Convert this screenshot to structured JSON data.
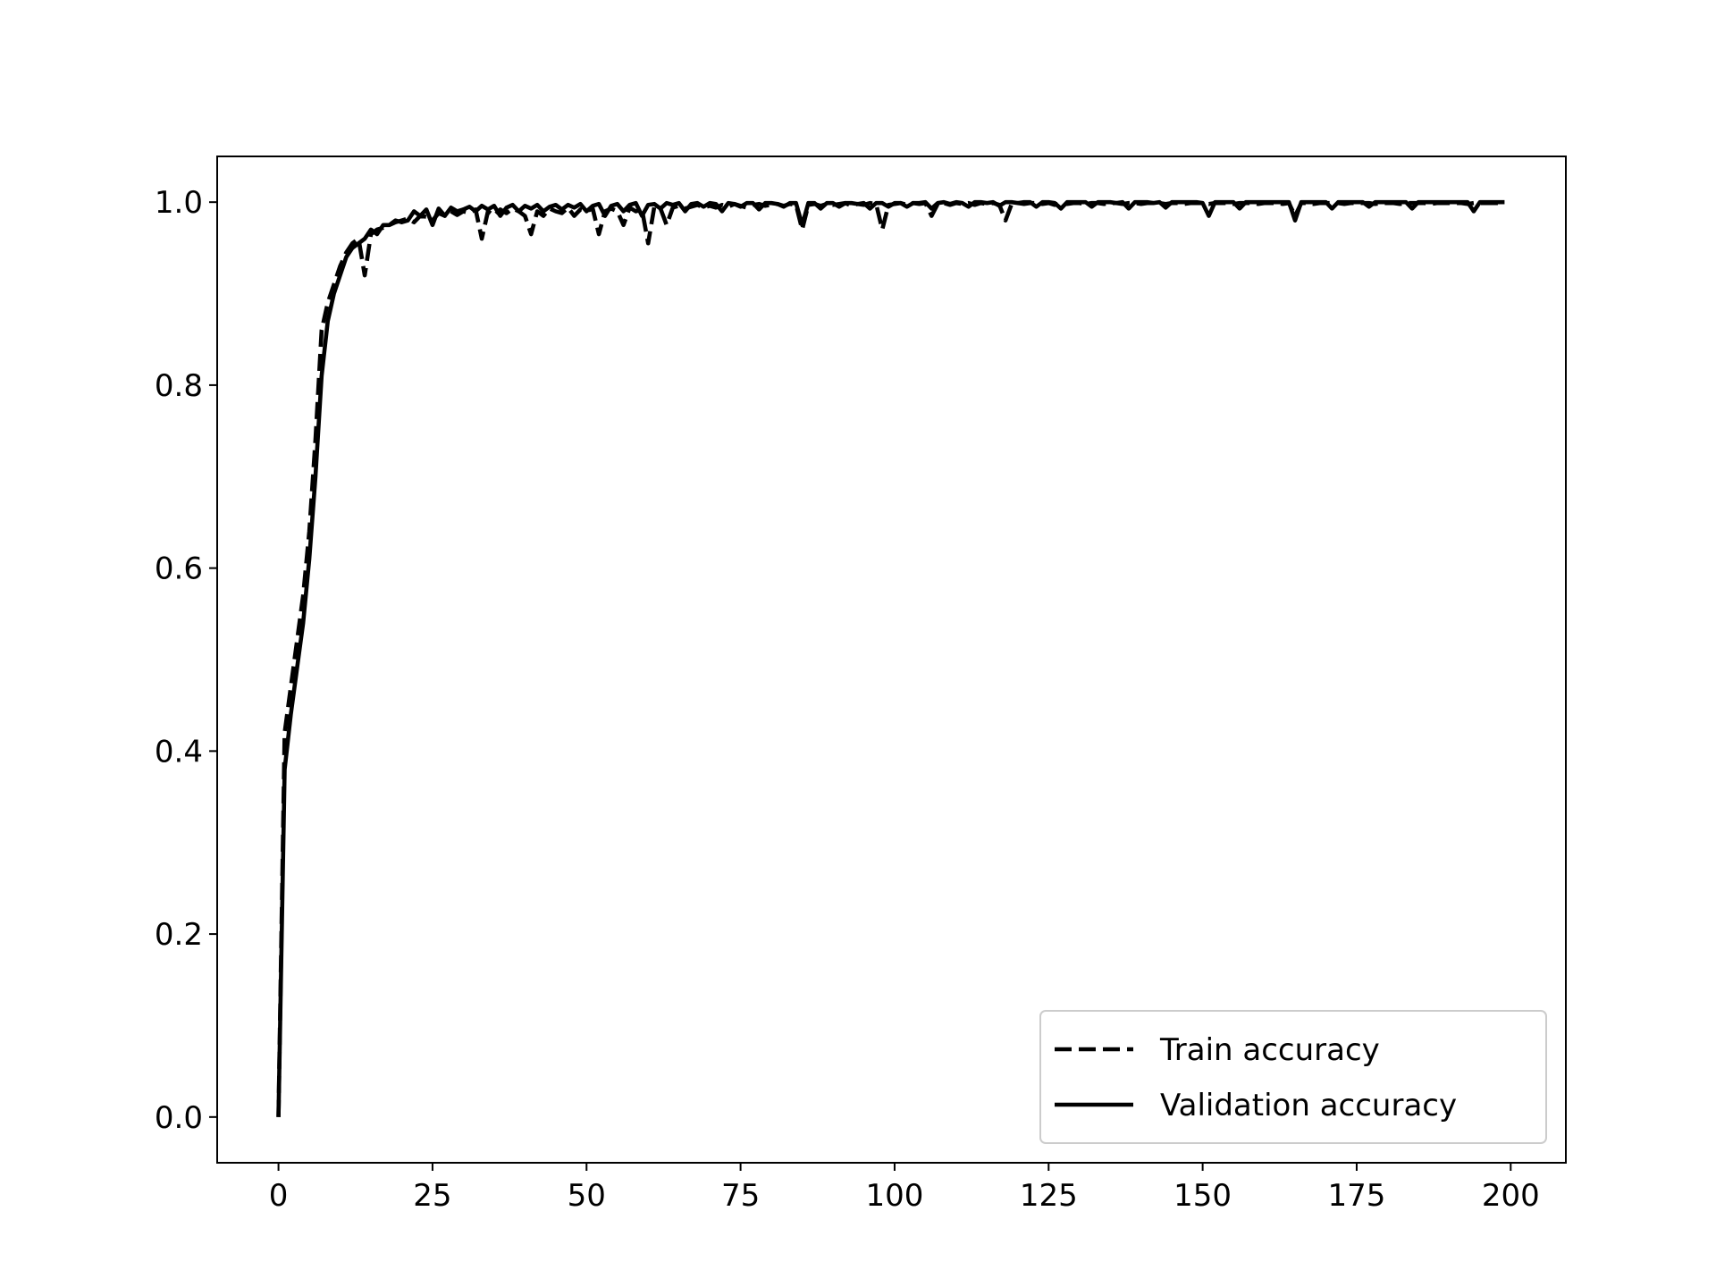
{
  "chart_data": {
    "type": "line",
    "x": [
      0,
      1,
      2,
      3,
      4,
      5,
      6,
      7,
      8,
      9,
      10,
      11,
      12,
      13,
      14,
      15,
      16,
      17,
      18,
      19,
      20,
      21,
      22,
      23,
      24,
      25,
      26,
      27,
      28,
      29,
      30,
      31,
      32,
      33,
      34,
      35,
      36,
      37,
      38,
      39,
      40,
      41,
      42,
      43,
      44,
      45,
      46,
      47,
      48,
      49,
      50,
      51,
      52,
      53,
      54,
      55,
      56,
      57,
      58,
      59,
      60,
      61,
      62,
      63,
      64,
      65,
      66,
      67,
      68,
      69,
      70,
      71,
      72,
      73,
      74,
      75,
      76,
      77,
      78,
      79,
      80,
      81,
      82,
      83,
      84,
      85,
      86,
      87,
      88,
      89,
      90,
      91,
      92,
      93,
      94,
      95,
      96,
      97,
      98,
      99,
      100,
      101,
      102,
      103,
      104,
      105,
      106,
      107,
      108,
      109,
      110,
      111,
      112,
      113,
      114,
      115,
      116,
      117,
      118,
      119,
      120,
      121,
      122,
      123,
      124,
      125,
      126,
      127,
      128,
      129,
      130,
      131,
      132,
      133,
      134,
      135,
      136,
      137,
      138,
      139,
      140,
      141,
      142,
      143,
      144,
      145,
      146,
      147,
      148,
      149,
      150,
      151,
      152,
      153,
      154,
      155,
      156,
      157,
      158,
      159,
      160,
      161,
      162,
      163,
      164,
      165,
      166,
      167,
      168,
      169,
      170,
      171,
      172,
      173,
      174,
      175,
      176,
      177,
      178,
      179,
      180,
      181,
      182,
      183,
      184,
      185,
      186,
      187,
      188,
      189,
      190,
      191,
      192,
      193,
      194,
      195,
      196,
      197,
      198,
      199
    ],
    "series": [
      {
        "name": "Train accuracy",
        "color": "#000000",
        "linestyle": "dashed",
        "values": [
          0,
          0.42,
          0.47,
          0.52,
          0.57,
          0.64,
          0.74,
          0.86,
          0.89,
          0.91,
          0.93,
          0.945,
          0.955,
          0.96,
          0.92,
          0.965,
          0.97,
          0.972,
          0.975,
          0.978,
          0.98,
          0.982,
          0.978,
          0.985,
          0.984,
          0.98,
          0.988,
          0.985,
          0.99,
          0.986,
          0.99,
          0.988,
          0.992,
          0.96,
          0.99,
          0.985,
          0.992,
          0.988,
          0.993,
          0.99,
          0.985,
          0.965,
          0.99,
          0.985,
          0.993,
          0.99,
          0.988,
          0.994,
          0.985,
          0.992,
          0.99,
          0.993,
          0.965,
          0.99,
          0.993,
          0.99,
          0.975,
          0.994,
          0.99,
          0.992,
          0.955,
          0.995,
          0.993,
          0.975,
          0.994,
          0.996,
          0.993,
          0.995,
          0.997,
          0.994,
          0.996,
          0.994,
          0.997,
          0.995,
          0.998,
          0.996,
          0.994,
          0.997,
          0.998,
          0.996,
          0.997,
          0.998,
          0.996,
          0.998,
          0.997,
          0.97,
          0.997,
          0.998,
          0.996,
          0.998,
          0.997,
          0.998,
          0.999,
          0.996,
          0.998,
          0.997,
          0.999,
          0.998,
          0.97,
          0.997,
          0.998,
          0.999,
          0.997,
          0.999,
          0.998,
          0.999,
          0.985,
          0.998,
          0.999,
          0.997,
          0.999,
          0.998,
          0.999,
          0.997,
          0.999,
          0.998,
          0.999,
          0.997,
          0.98,
          0.998,
          0.999,
          0.998,
          0.999,
          0.999,
          0.998,
          0.999,
          0.997,
          0.999,
          0.998,
          0.999,
          0.999,
          0.998,
          0.999,
          0.999,
          0.998,
          0.999,
          0.999,
          0.998,
          0.999,
          0.999,
          0.998,
          0.999,
          0.999,
          0.999,
          0.998,
          0.999,
          0.999,
          0.998,
          0.999,
          0.999,
          0.999,
          0.998,
          0.999,
          0.999,
          0.999,
          0.998,
          0.999,
          0.999,
          0.999,
          0.998,
          0.999,
          0.999,
          0.999,
          0.998,
          0.999,
          0.985,
          0.999,
          0.999,
          0.998,
          0.999,
          0.999,
          0.999,
          0.999,
          0.998,
          0.999,
          0.999,
          0.999,
          0.999,
          0.998,
          0.999,
          0.999,
          0.999,
          0.998,
          0.999,
          0.999,
          0.999,
          0.999,
          0.998,
          0.999,
          0.999,
          0.999,
          0.999,
          0.999,
          0.998,
          0.999,
          0.999,
          0.999,
          0.999,
          0.999,
          0.999
        ]
      },
      {
        "name": "Validation accuracy",
        "color": "#000000",
        "linestyle": "solid",
        "values": [
          0,
          0.38,
          0.44,
          0.49,
          0.54,
          0.61,
          0.7,
          0.81,
          0.87,
          0.9,
          0.92,
          0.94,
          0.95,
          0.955,
          0.96,
          0.97,
          0.965,
          0.975,
          0.975,
          0.98,
          0.978,
          0.98,
          0.99,
          0.985,
          0.992,
          0.975,
          0.993,
          0.985,
          0.994,
          0.99,
          0.992,
          0.995,
          0.99,
          0.996,
          0.992,
          0.996,
          0.985,
          0.994,
          0.997,
          0.99,
          0.996,
          0.993,
          0.997,
          0.99,
          0.995,
          0.997,
          0.992,
          0.997,
          0.994,
          0.998,
          0.99,
          0.996,
          0.998,
          0.985,
          0.996,
          0.998,
          0.99,
          0.997,
          0.999,
          0.985,
          0.997,
          0.998,
          0.993,
          0.999,
          0.997,
          0.999,
          0.99,
          0.998,
          0.999,
          0.995,
          0.999,
          0.998,
          0.99,
          0.999,
          0.998,
          0.995,
          0.999,
          0.999,
          0.992,
          0.999,
          0.999,
          0.998,
          0.995,
          0.999,
          0.999,
          0.975,
          0.999,
          0.999,
          0.993,
          0.999,
          0.999,
          0.995,
          0.999,
          0.999,
          0.998,
          0.999,
          0.993,
          0.999,
          0.999,
          0.995,
          0.999,
          0.999,
          0.995,
          0.999,
          0.999,
          1.0,
          0.993,
          0.999,
          1.0,
          0.998,
          1.0,
          0.999,
          0.995,
          1.0,
          1.0,
          0.999,
          1.0,
          0.996,
          1.0,
          1.0,
          0.999,
          1.0,
          1.0,
          0.995,
          1.0,
          1.0,
          0.999,
          0.993,
          1.0,
          1.0,
          1.0,
          1.0,
          0.995,
          1.0,
          1.0,
          1.0,
          0.999,
          1.0,
          0.993,
          1.0,
          1.0,
          1.0,
          0.999,
          1.0,
          0.994,
          1.0,
          1.0,
          1.0,
          1.0,
          1.0,
          0.999,
          0.985,
          1.0,
          1.0,
          1.0,
          1.0,
          0.993,
          1.0,
          1.0,
          1.0,
          1.0,
          1.0,
          1.0,
          1.0,
          1.0,
          0.98,
          1.0,
          1.0,
          1.0,
          1.0,
          1.0,
          0.993,
          1.0,
          1.0,
          1.0,
          1.0,
          1.0,
          0.995,
          1.0,
          1.0,
          1.0,
          1.0,
          1.0,
          1.0,
          0.993,
          1.0,
          1.0,
          1.0,
          1.0,
          1.0,
          1.0,
          1.0,
          1.0,
          1.0,
          0.99,
          1.0,
          1.0,
          1.0,
          1.0,
          1.0
        ]
      }
    ],
    "xlim": [
      -9.95,
      208.95
    ],
    "ylim": [
      -0.05,
      1.05
    ],
    "xticks": [
      0,
      25,
      50,
      75,
      100,
      125,
      150,
      175,
      200
    ],
    "yticks": [
      {
        "value": 0,
        "label": "0.0"
      },
      0.2,
      0.4,
      0.6,
      0.8,
      {
        "value": 1,
        "label": "1.0"
      }
    ],
    "legend": "lower right"
  }
}
